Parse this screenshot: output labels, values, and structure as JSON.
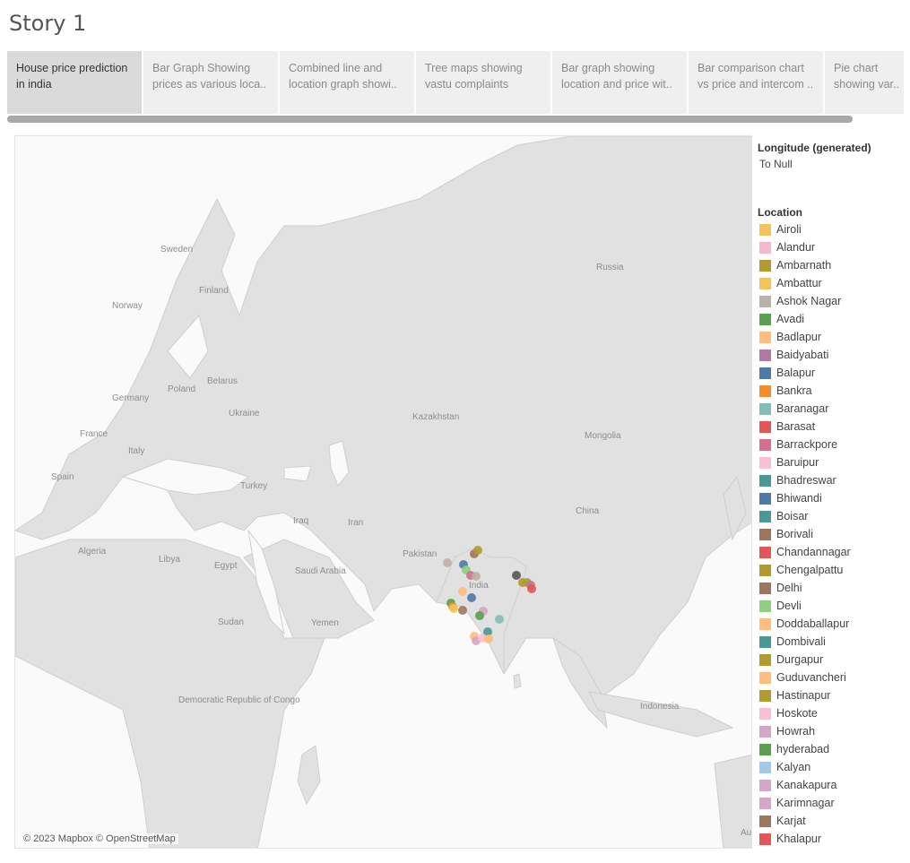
{
  "story": {
    "title": "Story 1"
  },
  "tabs": [
    {
      "line1": "House price prediction",
      "line2": "in india"
    },
    {
      "line1": "Bar Graph Showing",
      "line2": "prices as various loca.."
    },
    {
      "line1": "Combined line and",
      "line2": "location graph showi.."
    },
    {
      "line1": "Tree maps showing",
      "line2": "vastu complaints"
    },
    {
      "line1": "Bar graph showing",
      "line2": "location and price wit.."
    },
    {
      "line1": "Bar comparison chart",
      "line2": "vs price and intercom .."
    },
    {
      "line1": "Pie chart",
      "line2": "showing var.."
    }
  ],
  "map": {
    "attribution": "© 2023 Mapbox © OpenStreetMap",
    "country_labels": [
      "Sweden",
      "Finland",
      "Norway",
      "Russia",
      "Belarus",
      "Poland",
      "Germany",
      "Ukraine",
      "France",
      "Italy",
      "Spain",
      "Turkey",
      "Kazakhstan",
      "Mongolia",
      "Iraq",
      "Iran",
      "Pakistan",
      "India",
      "China",
      "Algeria",
      "Libya",
      "Egypt",
      "Saudi Arabia",
      "Yemen",
      "Sudan",
      "Democratic Republic of Congo",
      "Indonesia",
      "Au"
    ]
  },
  "legend": {
    "filter_title": "Longitude (generated)",
    "filter_value": "To Null",
    "location_title": "Location",
    "items": [
      {
        "label": "Airoli",
        "color": "#F2C55C"
      },
      {
        "label": "Alandur",
        "color": "#F6B7CD"
      },
      {
        "label": "Ambarnath",
        "color": "#B19A2E"
      },
      {
        "label": "Ambattur",
        "color": "#F2C55C"
      },
      {
        "label": "Ashok Nagar",
        "color": "#BAB0AC"
      },
      {
        "label": "Avadi",
        "color": "#59A14F"
      },
      {
        "label": "Badlapur",
        "color": "#FFBE7D"
      },
      {
        "label": "Baidyabati",
        "color": "#B07AA1"
      },
      {
        "label": "Balapur",
        "color": "#4E79A7"
      },
      {
        "label": "Bankra",
        "color": "#F28E2B"
      },
      {
        "label": "Baranagar",
        "color": "#86BCB6"
      },
      {
        "label": "Barasat",
        "color": "#E15759"
      },
      {
        "label": "Barrackpore",
        "color": "#D4708F"
      },
      {
        "label": "Baruipur",
        "color": "#FABFD2"
      },
      {
        "label": "Bhadreswar",
        "color": "#499894"
      },
      {
        "label": "Bhiwandi",
        "color": "#4E79A7"
      },
      {
        "label": "Boisar",
        "color": "#499894"
      },
      {
        "label": "Borivali",
        "color": "#9D7660"
      },
      {
        "label": "Chandannagar",
        "color": "#E15759"
      },
      {
        "label": "Chengalpattu",
        "color": "#B19A2E"
      },
      {
        "label": "Delhi",
        "color": "#9D7660"
      },
      {
        "label": "Devli",
        "color": "#8CD17D"
      },
      {
        "label": "Doddaballapur",
        "color": "#FFBE7D"
      },
      {
        "label": "Dombivali",
        "color": "#499894"
      },
      {
        "label": "Durgapur",
        "color": "#B19A2E"
      },
      {
        "label": "Guduvancheri",
        "color": "#FFBE7D"
      },
      {
        "label": "Hastinapur",
        "color": "#B19A2E"
      },
      {
        "label": "Hoskote",
        "color": "#FABFD2"
      },
      {
        "label": "Howrah",
        "color": "#D4A6C8"
      },
      {
        "label": "hyderabad",
        "color": "#59A14F"
      },
      {
        "label": "Kalyan",
        "color": "#A0CBE8"
      },
      {
        "label": "Kanakapura",
        "color": "#D4A6C8"
      },
      {
        "label": "Karimnagar",
        "color": "#D4A6C8"
      },
      {
        "label": "Karjat",
        "color": "#9D7660"
      },
      {
        "label": "Khalapur",
        "color": "#E15759"
      }
    ]
  }
}
